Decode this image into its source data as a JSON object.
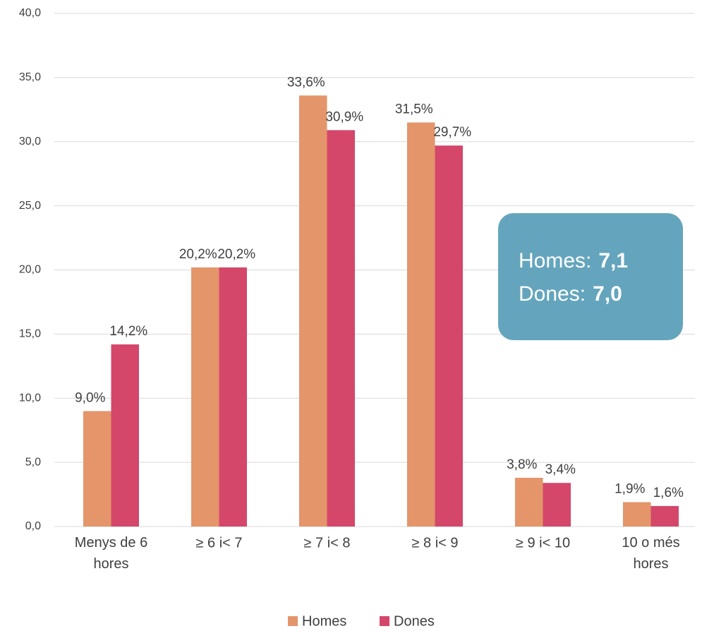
{
  "chart_data": {
    "type": "bar",
    "categories": [
      "Menys de 6 hores",
      "≥ 6 i< 7",
      "≥ 7 i< 8",
      "≥ 8 i< 9",
      "≥ 9 i< 10",
      "10 o més hores"
    ],
    "series": [
      {
        "name": "Homes",
        "color": "#e4956a",
        "values": [
          9.0,
          20.2,
          33.6,
          31.5,
          3.8,
          1.9
        ],
        "value_labels": [
          "9,0%",
          "20,2%",
          "33,6%",
          "31,5%",
          "3,8%",
          "1,9%"
        ]
      },
      {
        "name": "Dones",
        "color": "#d4476a",
        "values": [
          14.2,
          20.2,
          30.9,
          29.7,
          3.4,
          1.6
        ],
        "value_labels": [
          "14,2%",
          "20,2%",
          "30,9%",
          "29,7%",
          "3,4%",
          "1,6%"
        ]
      }
    ],
    "ylim": [
      0,
      40
    ],
    "yticks": [
      {
        "value": 0,
        "label": "0,0"
      },
      {
        "value": 5,
        "label": "5,0"
      },
      {
        "value": 10,
        "label": "10,0"
      },
      {
        "value": 15,
        "label": "15,0"
      },
      {
        "value": 20,
        "label": "20,0"
      },
      {
        "value": 25,
        "label": "25,0"
      },
      {
        "value": 30,
        "label": "30,0"
      },
      {
        "value": 35,
        "label": "35,0"
      },
      {
        "value": 40,
        "label": "40,0"
      }
    ],
    "grid": true,
    "legend": "bottom",
    "annotation": {
      "color": "#64a5bd",
      "lines": [
        {
          "label": "Homes:",
          "value": "7,1"
        },
        {
          "label": "Dones:",
          "value": "7,0"
        }
      ]
    }
  }
}
